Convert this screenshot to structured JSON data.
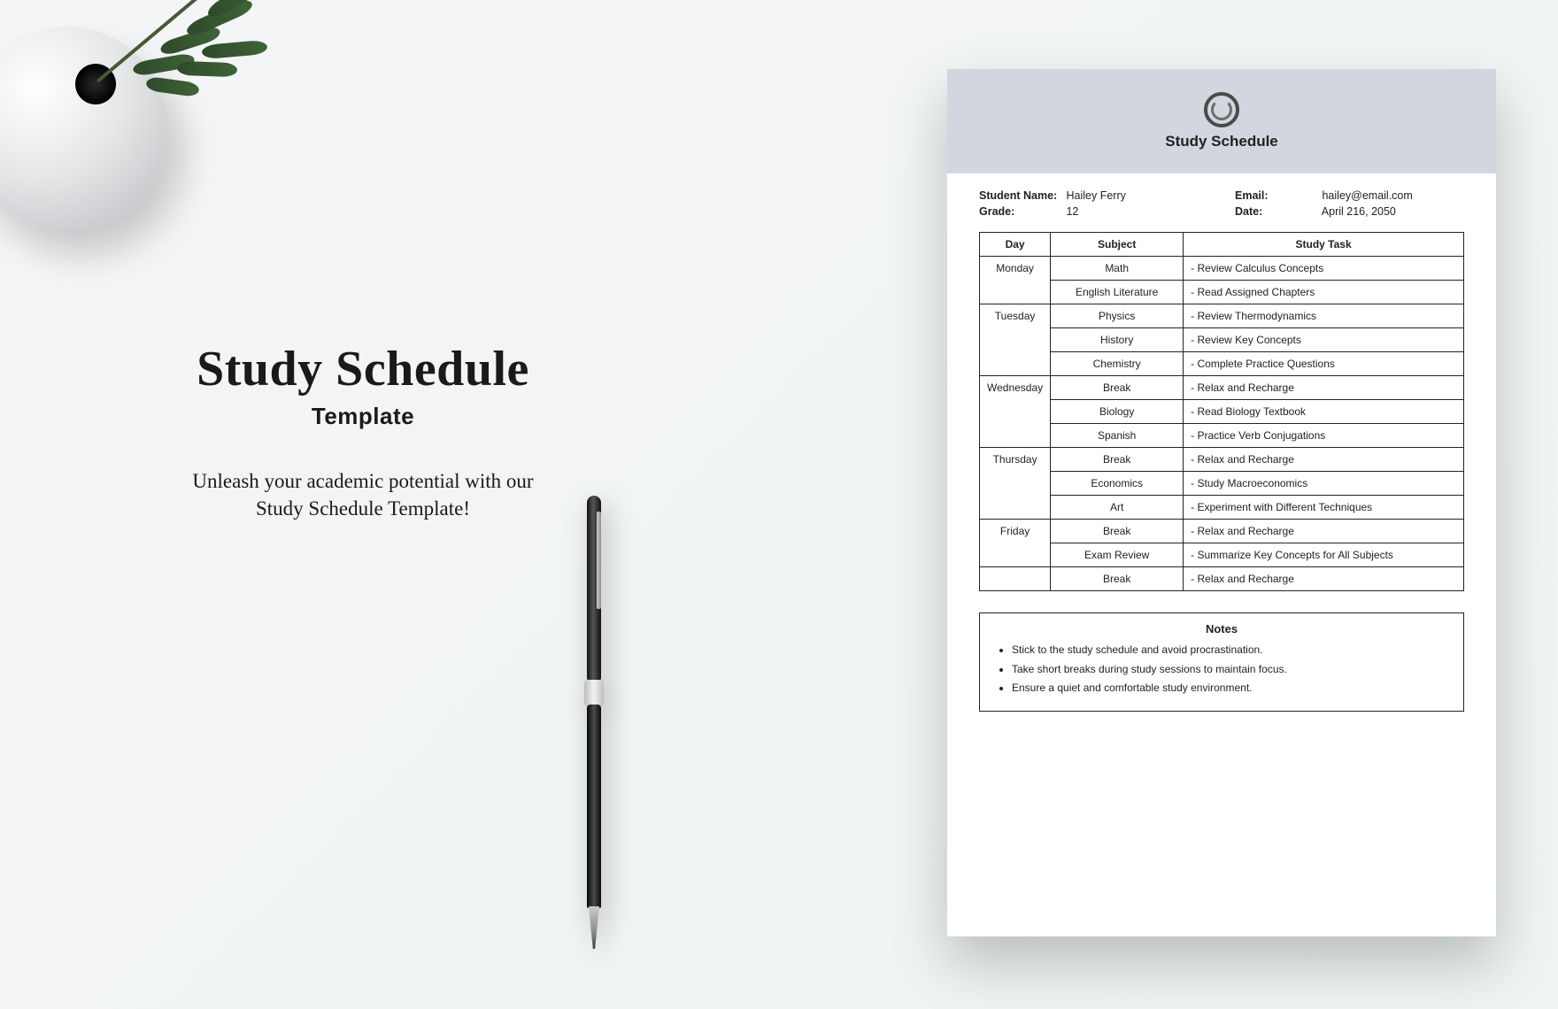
{
  "promo": {
    "title": "Study Schedule",
    "subtitle": "Template",
    "tagline_l1": "Unleash your academic potential with our",
    "tagline_l2": "Study Schedule Template!"
  },
  "doc": {
    "header_title": "Study Schedule",
    "student_name_label": "Student Name:",
    "student_name": "Hailey Ferry",
    "grade_label": "Grade:",
    "grade": "12",
    "email_label": "Email:",
    "email": "hailey@email.com",
    "date_label": "Date:",
    "date": "April 216, 2050",
    "columns": {
      "day": "Day",
      "subject": "Subject",
      "task": "Study Task"
    },
    "rows": [
      {
        "day": "Monday",
        "subject": "Math",
        "task": "Review Calculus Concepts",
        "rowspan": 2
      },
      {
        "day": "",
        "subject": "English Literature",
        "task": "Read Assigned Chapters"
      },
      {
        "day": "Tuesday",
        "subject": "Physics",
        "task": "Review Thermodynamics",
        "rowspan": 3
      },
      {
        "day": "",
        "subject": "History",
        "task": "Review Key Concepts"
      },
      {
        "day": "",
        "subject": "Chemistry",
        "task": "Complete Practice Questions"
      },
      {
        "day": "Wednesday",
        "subject": "Break",
        "task": "Relax and Recharge",
        "rowspan": 3
      },
      {
        "day": "",
        "subject": "Biology",
        "task": "Read Biology Textbook"
      },
      {
        "day": "",
        "subject": "Spanish",
        "task": "Practice Verb Conjugations"
      },
      {
        "day": "Thursday",
        "subject": "Break",
        "task": "Relax and Recharge",
        "rowspan": 3
      },
      {
        "day": "",
        "subject": "Economics",
        "task": "Study Macroeconomics"
      },
      {
        "day": "",
        "subject": "Art",
        "task": "Experiment with Different Techniques"
      },
      {
        "day": "Friday",
        "subject": "Break",
        "task": "Relax and Recharge",
        "rowspan": 2
      },
      {
        "day": "",
        "subject": "Exam Review",
        "task": "Summarize Key Concepts for All Subjects"
      },
      {
        "day": "",
        "subject": "Break",
        "task": "Relax and Recharge",
        "standalone": true
      }
    ],
    "notes_title": "Notes",
    "notes": [
      "Stick to the study schedule and avoid procrastination.",
      "Take short breaks during study sessions to maintain focus.",
      "Ensure a quiet and comfortable study environment."
    ]
  },
  "style": {
    "page_bg": "#ffffff",
    "header_bg": "#d3d6de",
    "border_color": "#222222",
    "body_font": "Arial",
    "promo_font": "Georgia"
  }
}
